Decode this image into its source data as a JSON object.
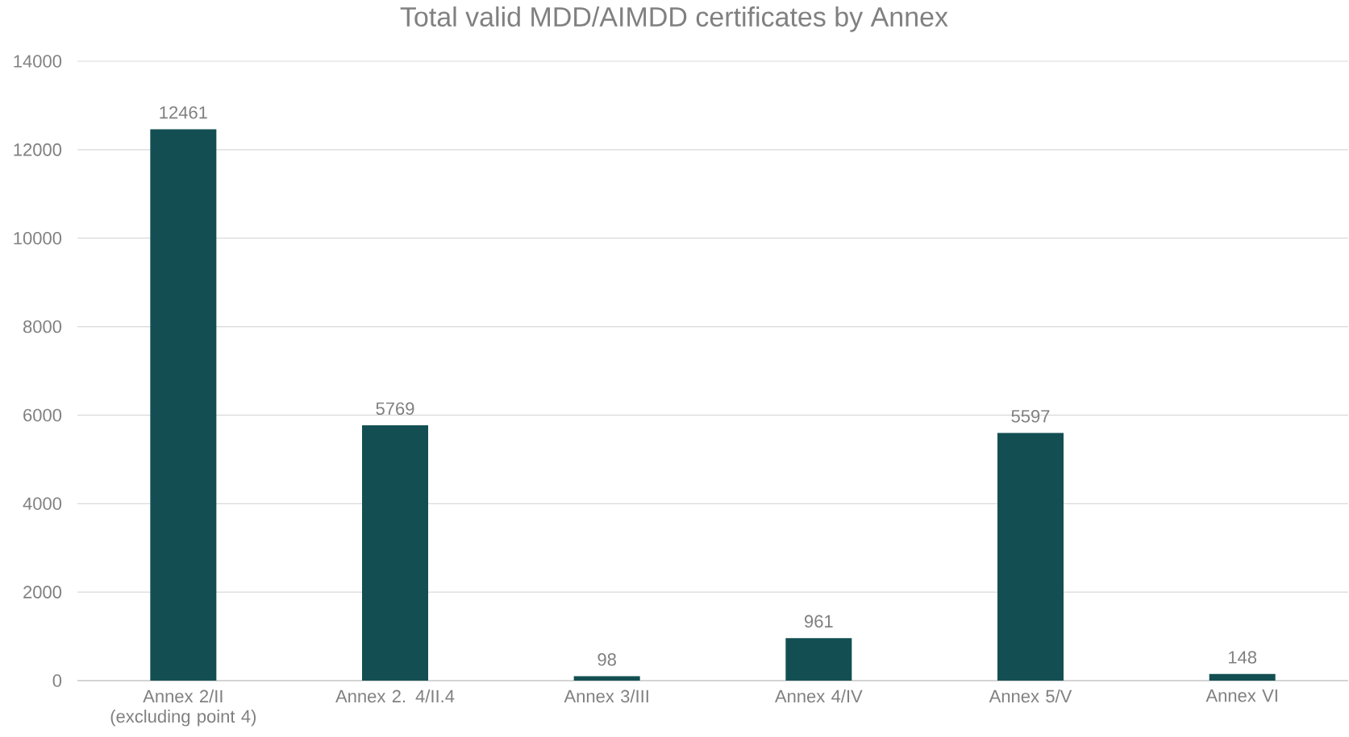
{
  "chart_data": {
    "type": "bar",
    "title": "Total valid MDD/AIMDD certificates by Annex",
    "categories": [
      "Annex 2/II (excluding point 4)",
      "Annex 2. 4/II.4",
      "Annex 3/III",
      "Annex 4/IV",
      "Annex 5/V",
      "Annex VI"
    ],
    "values": [
      12461,
      5769,
      98,
      961,
      5597,
      148
    ],
    "color": "#134f52",
    "ylim": [
      0,
      14000
    ],
    "yticks": [
      0,
      2000,
      4000,
      6000,
      8000,
      10000,
      12000,
      14000
    ],
    "grid": "y",
    "data_labels": true
  }
}
